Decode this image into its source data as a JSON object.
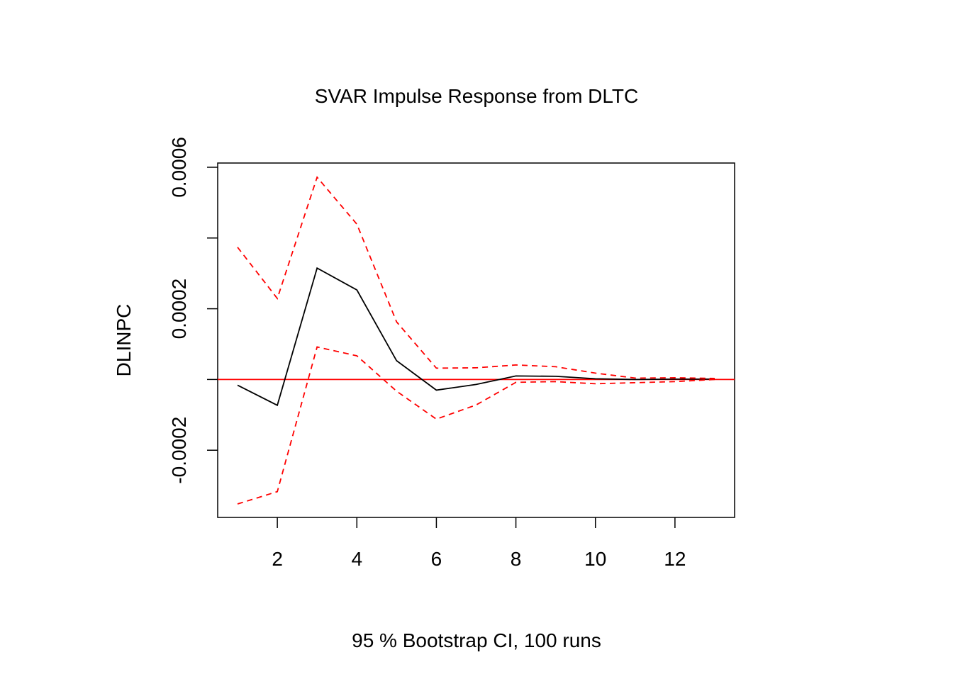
{
  "chart_data": {
    "type": "line",
    "title": "SVAR Impulse Response from DLTC",
    "xlabel": "95 % Bootstrap CI,  100 runs",
    "ylabel": "DLINPC",
    "xlim": [
      0.5,
      13.5
    ],
    "ylim": [
      -0.00039,
      0.000612
    ],
    "x_ticks": [
      2,
      4,
      6,
      8,
      10,
      12
    ],
    "x_tick_labels": [
      "2",
      "4",
      "6",
      "8",
      "10",
      "12"
    ],
    "y_ticks": [
      -0.0002,
      0,
      0.0002,
      0.0004,
      0.0006
    ],
    "y_tick_labels": [
      "-0.0002",
      "",
      "0.0002",
      "",
      "0.0006"
    ],
    "x": [
      1,
      2,
      3,
      4,
      5,
      6,
      7,
      8,
      9,
      10,
      11,
      12,
      13
    ],
    "series": [
      {
        "values": [
          -1.6e-05,
          -7.3e-05,
          0.000315,
          0.000253,
          5.3e-05,
          -3e-05,
          -1.4e-05,
          1e-05,
          9e-06,
          2e-06,
          0.0,
          1e-06,
          1e-06
        ],
        "color": "#000000",
        "style": "solid"
      },
      {
        "values": [
          0.000374,
          0.000229,
          0.000572,
          0.000439,
          0.000163,
          3.2e-05,
          3.3e-05,
          4.1e-05,
          3.6e-05,
          1.8e-05,
          4e-06,
          5e-06,
          3e-06
        ],
        "color": "#ff0000",
        "style": "dashed"
      },
      {
        "values": [
          -0.000352,
          -0.000317,
          9.2e-05,
          6.7e-05,
          -3.3e-05,
          -0.000112,
          -7.2e-05,
          -8e-06,
          -6e-06,
          -1.2e-05,
          -9e-06,
          -6e-06,
          0.0
        ],
        "color": "#ff0000",
        "style": "dashed"
      }
    ],
    "reference_line": {
      "y": 0,
      "color": "#ff0000"
    },
    "grid": false,
    "legend": "none"
  }
}
